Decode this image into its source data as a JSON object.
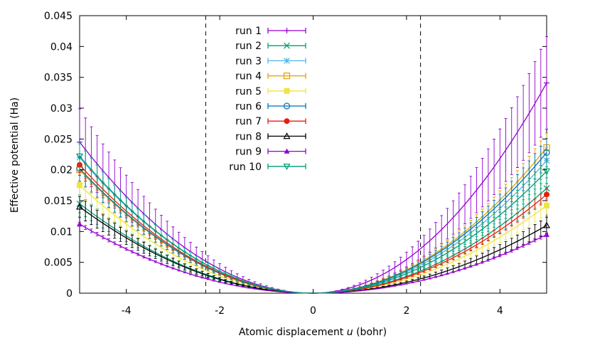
{
  "chart_data": {
    "type": "line",
    "title": "",
    "xlabel_parts": [
      "Atomic displacement ",
      "u",
      " (bohr)"
    ],
    "ylabel": "Effective potential (Ha)",
    "xlim": [
      -5,
      5
    ],
    "ylim": [
      0,
      0.045
    ],
    "x_ticks": [
      -4,
      -2,
      0,
      2,
      4
    ],
    "x_tick_labels": [
      "-4",
      "-2",
      "0",
      "2",
      "4"
    ],
    "y_ticks": [
      0,
      0.005,
      0.01,
      0.015,
      0.02,
      0.025,
      0.03,
      0.035,
      0.04,
      0.045
    ],
    "y_tick_labels": [
      "0",
      "0.005",
      "0.01",
      "0.015",
      "0.02",
      "0.025",
      "0.03",
      "0.035",
      "0.04",
      "0.045"
    ],
    "vlines": [
      -2.3,
      2.3
    ],
    "legend_position": "top-left",
    "series": [
      {
        "name": "run 1",
        "color": "#9400d3",
        "marker": "plus",
        "x": [
          -5,
          0,
          5
        ],
        "values": [
          0.0245,
          0.0,
          0.0341
        ],
        "err_frac": 0.22
      },
      {
        "name": "run 2",
        "color": "#009e73",
        "marker": "cross",
        "x": [
          -5,
          0,
          5
        ],
        "values": [
          0.0145,
          0.0,
          0.017
        ],
        "err_frac": 0.1
      },
      {
        "name": "run 3",
        "color": "#56b4e9",
        "marker": "asterisk",
        "x": [
          -5,
          0,
          5
        ],
        "values": [
          0.022,
          0.0,
          0.0215
        ],
        "err_frac": 0.1
      },
      {
        "name": "run 4",
        "color": "#e69f00",
        "marker": "open-square",
        "x": [
          -5,
          0,
          5
        ],
        "values": [
          0.02,
          0.0,
          0.0236
        ],
        "err_frac": 0.1
      },
      {
        "name": "run 5",
        "color": "#f0e442",
        "marker": "filled-square",
        "x": [
          -5,
          0,
          5
        ],
        "values": [
          0.0175,
          0.0,
          0.0142
        ],
        "err_frac": 0.1
      },
      {
        "name": "run 6",
        "color": "#0072b2",
        "marker": "open-circle",
        "x": [
          -5,
          0,
          5
        ],
        "values": [
          0.0202,
          0.0,
          0.0228
        ],
        "err_frac": 0.1
      },
      {
        "name": "run 7",
        "color": "#e51e10",
        "marker": "filled-circle",
        "x": [
          -5,
          0,
          5
        ],
        "values": [
          0.0208,
          0.0,
          0.016
        ],
        "err_frac": 0.06
      },
      {
        "name": "run 8",
        "color": "#000000",
        "marker": "open-triangle",
        "x": [
          -5,
          0,
          5
        ],
        "values": [
          0.014,
          0.0,
          0.011
        ],
        "err_frac": 0.12
      },
      {
        "name": "run 9",
        "color": "#9400d3",
        "marker": "filled-triangle",
        "x": [
          -5,
          0,
          5
        ],
        "values": [
          0.0112,
          0.0,
          0.0095
        ],
        "err_frac": 0.03
      },
      {
        "name": "run 10",
        "color": "#009e73",
        "marker": "open-inv-triangle",
        "x": [
          -5,
          0,
          5
        ],
        "values": [
          0.0222,
          0.0,
          0.0198
        ],
        "err_frac": 0.1
      }
    ]
  }
}
